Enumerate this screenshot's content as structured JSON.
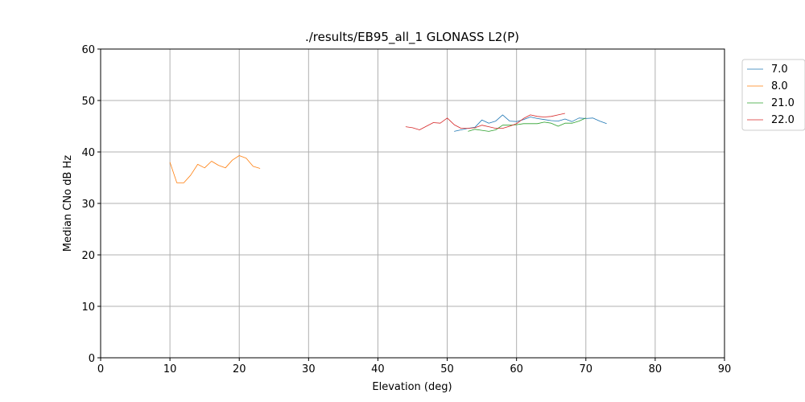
{
  "chart_data": {
    "type": "line",
    "title": "./results/EB95_all_1 GLONASS L2(P)",
    "xlabel": "Elevation (deg)",
    "ylabel": "Median CNo dB Hz",
    "xlim": [
      0,
      90
    ],
    "ylim": [
      0,
      60
    ],
    "xticks": [
      0,
      10,
      20,
      30,
      40,
      50,
      60,
      70,
      80,
      90
    ],
    "yticks": [
      0,
      10,
      20,
      30,
      40,
      50,
      60
    ],
    "grid": true,
    "legend_position": "outside-top-right",
    "series": [
      {
        "name": "7.0",
        "color": "#1f77b4",
        "x": [
          51,
          52,
          53,
          54,
          55,
          56,
          57,
          58,
          59,
          60,
          61,
          62,
          63,
          64,
          65,
          66,
          67,
          68,
          69,
          70,
          71,
          72,
          73
        ],
        "y": [
          44.0,
          44.3,
          44.6,
          44.8,
          46.2,
          45.6,
          46.0,
          47.2,
          46.0,
          45.9,
          46.3,
          46.8,
          46.5,
          46.3,
          46.1,
          46.0,
          46.4,
          45.9,
          46.6,
          46.5,
          46.6,
          46.0,
          45.5
        ]
      },
      {
        "name": "8.0",
        "color": "#ff7f0e",
        "x": [
          10,
          11,
          12,
          13,
          14,
          15,
          16,
          17,
          18,
          19,
          20,
          21,
          22,
          23
        ],
        "y": [
          38.0,
          34.0,
          34.0,
          35.5,
          37.6,
          36.9,
          38.2,
          37.4,
          36.9,
          38.4,
          39.3,
          38.8,
          37.2,
          36.8
        ]
      },
      {
        "name": "21.0",
        "color": "#2ca02c",
        "x": [
          53,
          54,
          55,
          56,
          57,
          58,
          59,
          60,
          61,
          62,
          63,
          64,
          65,
          66,
          67,
          68,
          69,
          70
        ],
        "y": [
          44.0,
          44.4,
          44.2,
          44.0,
          44.3,
          45.2,
          45.2,
          45.3,
          45.5,
          45.5,
          45.5,
          45.8,
          45.6,
          45.0,
          45.6,
          45.6,
          46.0,
          46.6
        ]
      },
      {
        "name": "22.0",
        "color": "#d62728",
        "x": [
          44,
          45,
          46,
          47,
          48,
          49,
          50,
          51,
          52,
          53,
          54,
          55,
          56,
          57,
          58,
          59,
          60,
          61,
          62,
          63,
          64,
          65,
          66,
          67
        ],
        "y": [
          44.9,
          44.7,
          44.3,
          45.0,
          45.7,
          45.6,
          46.6,
          45.3,
          44.6,
          44.6,
          44.7,
          45.2,
          44.9,
          44.6,
          44.6,
          45.0,
          45.5,
          46.5,
          47.2,
          46.9,
          46.8,
          46.9,
          47.2,
          47.5
        ]
      }
    ]
  }
}
